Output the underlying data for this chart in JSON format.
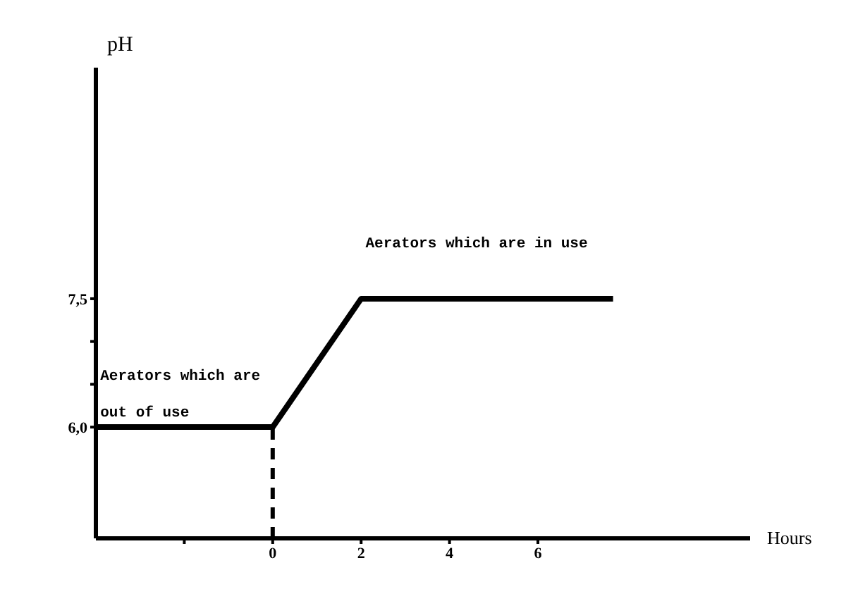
{
  "chart_data": {
    "type": "line",
    "xlabel": "Hours",
    "ylabel": "pH",
    "x": [
      -4,
      0,
      2,
      7.7
    ],
    "series": [
      {
        "color": "#000000",
        "values": [
          6.0,
          6.0,
          7.5,
          7.5
        ]
      }
    ],
    "xlim": [
      -4,
      10.8
    ],
    "xticks": [
      {
        "value": -2,
        "label": null
      },
      {
        "value": 0,
        "label": "0"
      },
      {
        "value": 2,
        "label": "2"
      },
      {
        "value": 4,
        "label": "4"
      },
      {
        "value": 6,
        "label": "6"
      }
    ],
    "ylim": [
      4.7,
      10.2
    ],
    "yticks": [
      {
        "value": 6,
        "label": "6,0"
      },
      {
        "value": 6.5,
        "label": null
      },
      {
        "value": 7,
        "label": null
      },
      {
        "value": 7.5,
        "label": "7,5"
      }
    ],
    "ref_lines": [
      {
        "axis": "x",
        "value": 0,
        "line_style": "dashed",
        "color": "#000000"
      }
    ],
    "annotations": [
      "Aerators which are in use",
      "Aerators which are out of use"
    ],
    "grid": false,
    "legend": false,
    "marker": "none",
    "line_style": "solid"
  }
}
